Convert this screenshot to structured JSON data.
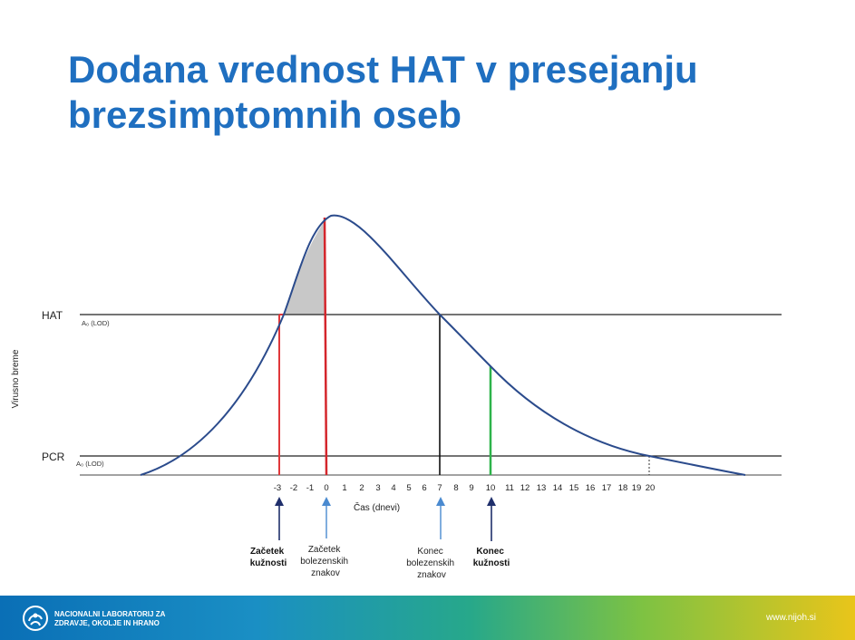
{
  "title": {
    "line1": "Dodana vrednost HAT v presejanju",
    "line2": "brezsimptomnih oseb"
  },
  "diagram": {
    "y_label": "Virusno breme",
    "x_label": "Čas (dnevi)",
    "hat_label": "HAT",
    "hat_lod": "A₀ (LOD)",
    "pcr_label": "PCR",
    "pcr_lod": "A₀ (LOD)",
    "x_ticks": [
      "-3",
      "-2",
      "-1",
      "0",
      "1",
      "2",
      "3",
      "4",
      "5",
      "6",
      "7",
      "8",
      "9",
      "10",
      "11",
      "12",
      "13",
      "14",
      "15",
      "16",
      "17",
      "18",
      "19",
      "20"
    ],
    "events": {
      "start_infectious": [
        "Začetek",
        "kužnosti"
      ],
      "start_symptoms": [
        "Začetek",
        "bolezenskih",
        "znakov"
      ],
      "end_symptoms": [
        "Konec",
        "bolezenskih",
        "znakov"
      ],
      "end_infectious": [
        "Konec",
        "kužnosti"
      ]
    },
    "colors": {
      "curve": "#2b4b8c",
      "start_infectious_line": "#e0383b",
      "start_symptoms_line": "#d4262c",
      "end_symptoms_line": "#111111",
      "end_infectious_line": "#2db34a",
      "shaded_area": "#c8c8c8",
      "arrow_dark": "#1f2f6b",
      "arrow_light": "#4a8ad0"
    }
  },
  "footer": {
    "org_line1": "NACIONALNI LABORATORIJ ZA",
    "org_line2": "ZDRAVJE, OKOLJE IN HRANO",
    "website": "www.nijoh.si"
  }
}
